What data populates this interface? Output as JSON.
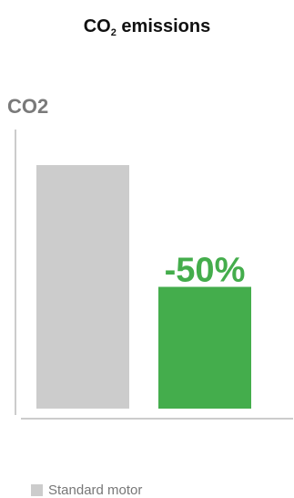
{
  "chart_data": {
    "type": "bar",
    "title_main": "CO",
    "title_sub": "2",
    "title_rest": " emissions",
    "ylabel": "CO2",
    "categories": [
      "Standard motor",
      ""
    ],
    "values": [
      100,
      50
    ],
    "ylim": [
      0,
      100
    ],
    "bar_colors": [
      "#cccccc",
      "#44ad4c"
    ],
    "annotation": "-50%",
    "annotation_color": "#44ad4c",
    "legend": [
      {
        "label": "Standard motor",
        "color": "#cccccc"
      }
    ],
    "legend_position": "bottom-left",
    "grid": false
  }
}
